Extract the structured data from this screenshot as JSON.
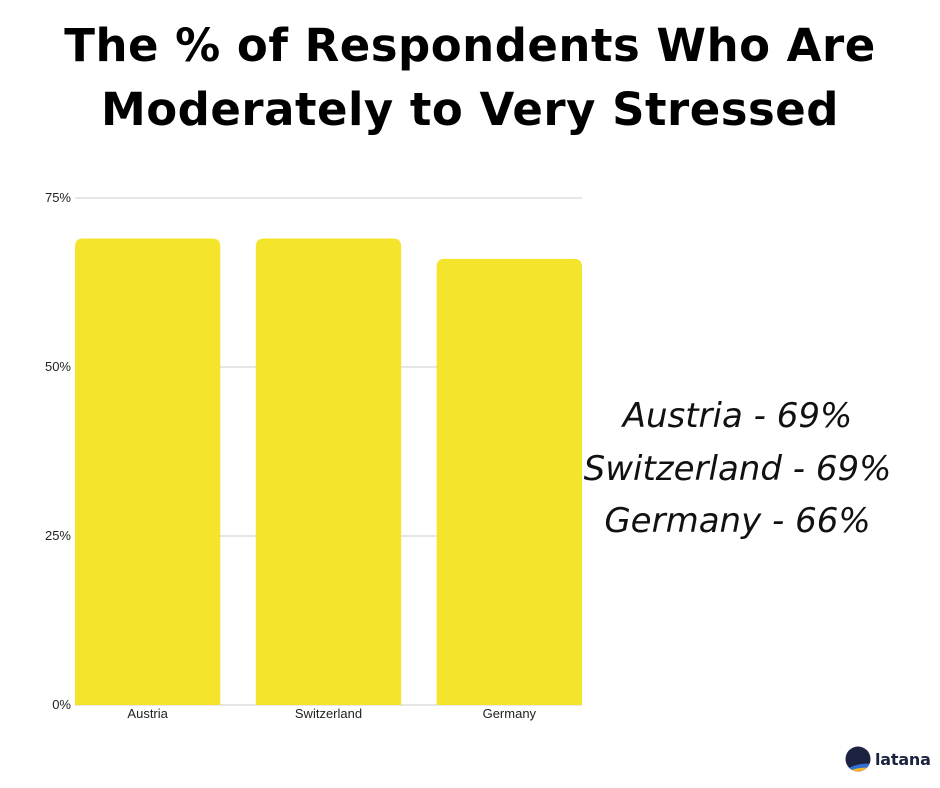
{
  "chart_data": {
    "type": "bar",
    "title": "The % of Respondents Who Are Moderately to Very Stressed",
    "title_lines": [
      "The % of Respondents Who Are",
      "Moderately to Very Stressed"
    ],
    "categories": [
      "Austria",
      "Switzerland",
      "Germany"
    ],
    "values": [
      69,
      69,
      66
    ],
    "ylim": [
      0,
      75
    ],
    "yticks": [
      0,
      25,
      50,
      75
    ],
    "ytick_labels": [
      "0%",
      "25%",
      "50%",
      "75%"
    ],
    "xlabel": "",
    "ylabel": "",
    "grid": true,
    "bar_color": "#f4e42c",
    "grid_color": "#cccccc"
  },
  "annotations": [
    "Austria - 69%",
    "Switzerland - 69%",
    "Germany - 66%"
  ],
  "logo": {
    "text": "latana",
    "icon": "latana-logo-icon"
  }
}
